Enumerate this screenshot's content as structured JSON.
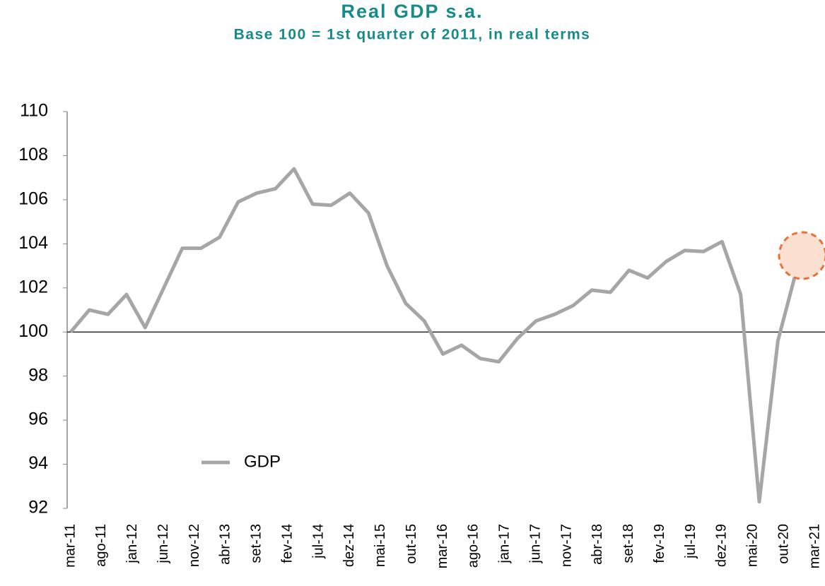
{
  "chart_data": {
    "type": "line",
    "title": "Real GDP s.a.",
    "subtitle": "Base 100 = 1st quarter of 2011, in real terms",
    "series": [
      {
        "name": "GDP",
        "color": "#a6a6a6",
        "values": [
          100,
          101,
          100.8,
          101.7,
          100.2,
          102,
          103.8,
          103.8,
          104.3,
          105.9,
          106.3,
          106.5,
          107.4,
          105.8,
          105.75,
          106.3,
          105.4,
          103,
          101.3,
          100.5,
          99,
          99.4,
          98.8,
          98.65,
          99.7,
          100.5,
          100.8,
          101.2,
          101.9,
          101.8,
          102.8,
          102.45,
          103.2,
          103.7,
          103.65,
          104.1,
          101.7,
          92.3,
          99.6,
          102.8,
          104.1
        ]
      }
    ],
    "xticks": [
      "mar-11",
      "ago-11",
      "jan-12",
      "jun-12",
      "nov-12",
      "abr-13",
      "set-13",
      "fev-14",
      "jul-14",
      "dez-14",
      "mai-15",
      "out-15",
      "mar-16",
      "ago-16",
      "jan-17",
      "jun-17",
      "nov-17",
      "abr-18",
      "set-18",
      "fev-19",
      "jul-19",
      "dez-19",
      "mai-20",
      "out-20",
      "mar-21"
    ],
    "ylim": [
      92,
      110
    ],
    "yticks": [
      92,
      94,
      96,
      98,
      100,
      102,
      104,
      106,
      108,
      110
    ],
    "reference_line": 100,
    "legend": "lower-left"
  }
}
